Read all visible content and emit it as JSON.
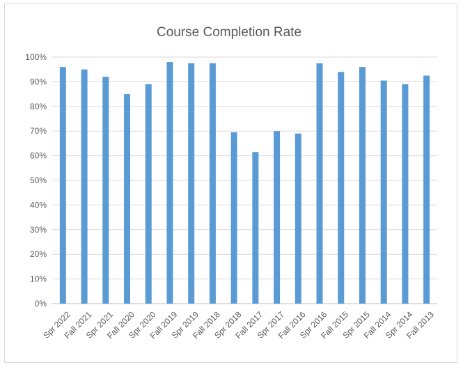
{
  "chart_data": {
    "type": "bar",
    "title": "Course Completion Rate",
    "xlabel": "",
    "ylabel": "",
    "categories": [
      "Spr 2022",
      "Fall 2021",
      "Spr 2021",
      "Fall 2020",
      "Spr 2020",
      "Fall 2019",
      "Spr 2019",
      "Fall 2018",
      "Spr 2018",
      "Fall 2017",
      "Spr 2017",
      "Fall 2016",
      "Spr 2016",
      "Fall 2015",
      "Spr 2015",
      "Fall 2014",
      "Spr 2014",
      "Fall 2013"
    ],
    "values": [
      96,
      95,
      92,
      85,
      89,
      98,
      97.5,
      97.5,
      69.5,
      61.5,
      70,
      69,
      97.5,
      94,
      96,
      90.5,
      89,
      92.5
    ],
    "ylim": [
      0,
      100
    ],
    "yticks": [
      "0%",
      "10%",
      "20%",
      "30%",
      "40%",
      "50%",
      "60%",
      "70%",
      "80%",
      "90%",
      "100%"
    ],
    "grid": true,
    "legend": "none",
    "bar_color": "#5b9bd5"
  }
}
